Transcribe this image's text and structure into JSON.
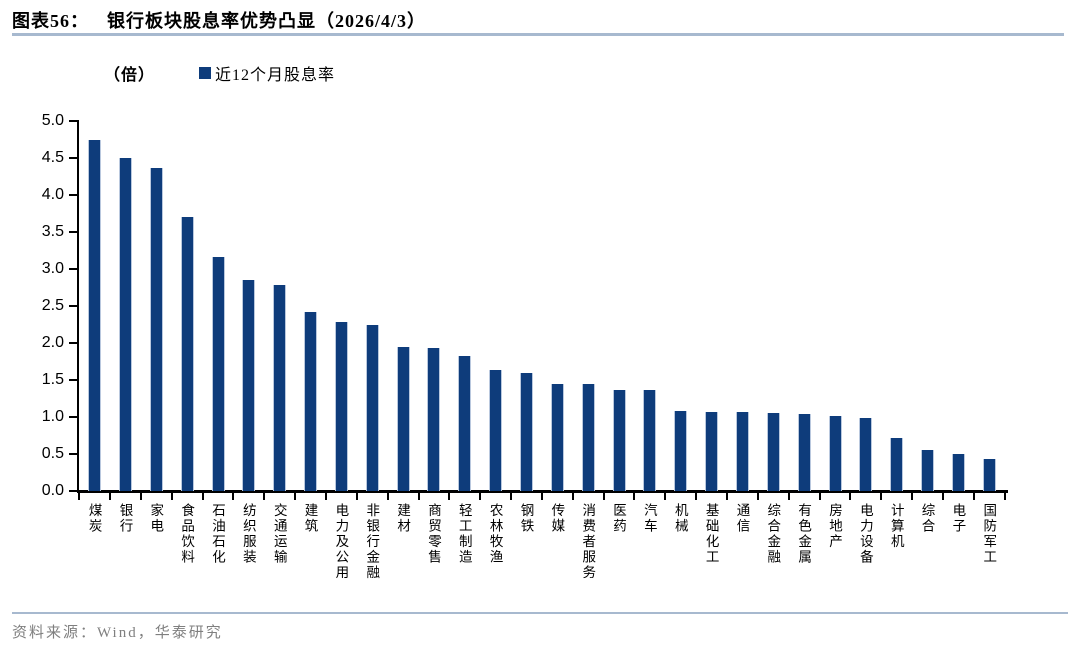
{
  "header": {
    "figure_label": "图表56：",
    "title": "银行板块股息率优势凸显（2026/4/3）"
  },
  "chart_data": {
    "type": "bar",
    "title": "银行板块股息率优势凸显（2026/4/3）",
    "unit_label": "（倍）",
    "legend": [
      "近12个月股息率"
    ],
    "legend_position": "top",
    "grid": false,
    "ylim": [
      0.0,
      5.0
    ],
    "yticks": [
      "0.0",
      "0.5",
      "1.0",
      "1.5",
      "2.0",
      "2.5",
      "3.0",
      "3.5",
      "4.0",
      "4.5",
      "5.0"
    ],
    "bar_color": "#0e3c7b",
    "categories": [
      "煤炭",
      "银行",
      "家电",
      "食品饮料",
      "石油石化",
      "纺织服装",
      "交通运输",
      "建筑",
      "电力及公用",
      "非银行金融",
      "建材",
      "商贸零售",
      "轻工制造",
      "农林牧渔",
      "钢铁",
      "传媒",
      "消费者服务",
      "医药",
      "汽车",
      "机械",
      "基础化工",
      "通信",
      "综合金融",
      "有色金属",
      "房地产",
      "电力设备",
      "计算机",
      "综合",
      "电子",
      "国防军工"
    ],
    "values": [
      4.74,
      4.5,
      4.37,
      3.7,
      3.16,
      2.85,
      2.79,
      2.42,
      2.28,
      2.25,
      1.95,
      1.93,
      1.82,
      1.63,
      1.6,
      1.45,
      1.44,
      1.37,
      1.37,
      1.08,
      1.07,
      1.07,
      1.05,
      1.04,
      1.02,
      0.99,
      0.72,
      0.56,
      0.5,
      0.43
    ]
  },
  "footer": {
    "source": "资料来源：Wind，华泰研究"
  }
}
